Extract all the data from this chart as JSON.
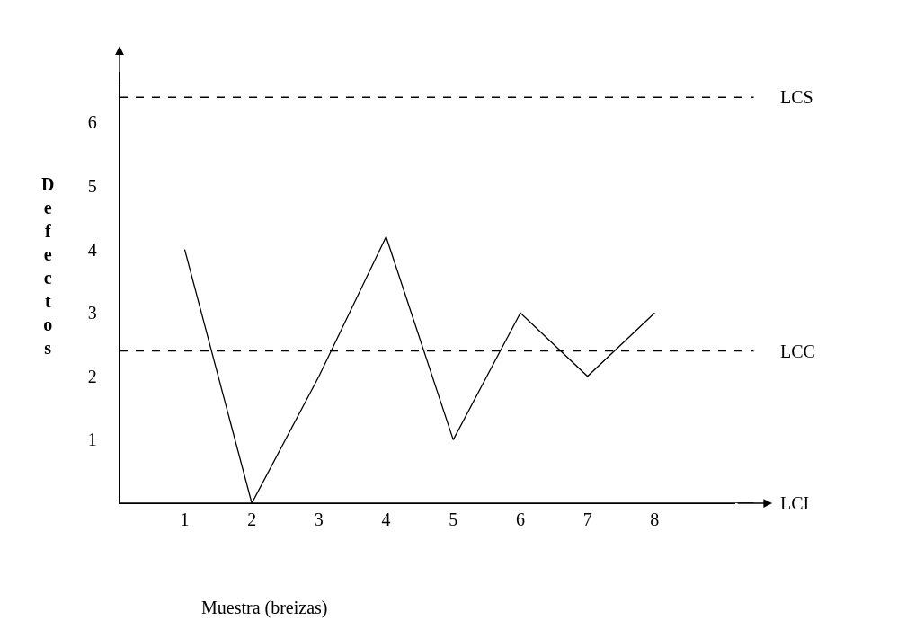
{
  "chart_data": {
    "type": "line",
    "xlabel": "Muestra (breizas)",
    "ylabel": "Defectos",
    "categories": [
      "1",
      "2",
      "3",
      "4",
      "5",
      "6",
      "7",
      "8"
    ],
    "series": [
      {
        "color": "#000000",
        "values": [
          4,
          0,
          2,
          4.2,
          1,
          3,
          2,
          3
        ]
      }
    ],
    "ylim": [
      0,
      6.8
    ],
    "yticks": [
      1,
      2,
      3,
      4,
      5,
      6
    ],
    "ref_lines": [
      {
        "axis": "y",
        "value": 6.4,
        "label": "LCS",
        "line_style": "dashed",
        "color": "#000000"
      },
      {
        "axis": "y",
        "value": 2.4,
        "label": "LCC",
        "line_style": "dashed",
        "color": "#000000"
      },
      {
        "axis": "y",
        "value": 0,
        "label": "LCI",
        "line_style": "solid",
        "color": "#000000"
      }
    ],
    "marker": "none",
    "line_style": "solid"
  }
}
